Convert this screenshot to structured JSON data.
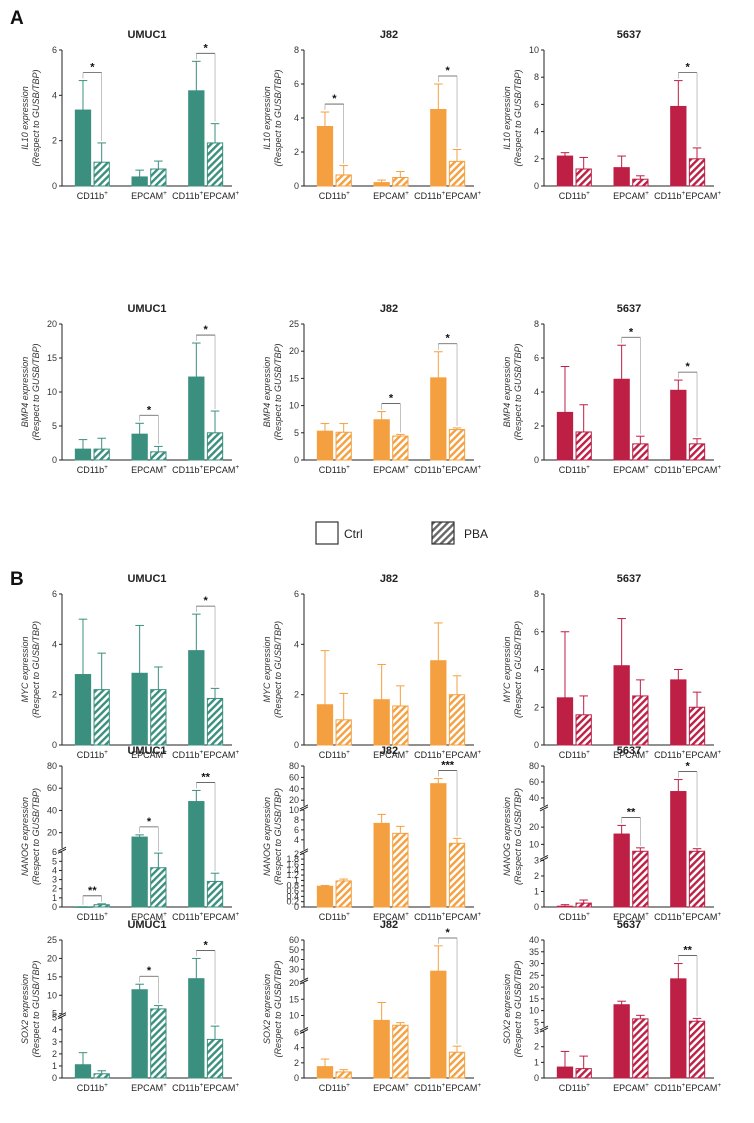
{
  "panel_labels": [
    "A",
    "B"
  ],
  "legend": {
    "items": [
      {
        "label": "Ctrl",
        "pattern": "solid"
      },
      {
        "label": "PBA",
        "pattern": "hatched"
      }
    ]
  },
  "colors": {
    "UMUC1": "#3a8f7f",
    "J82": "#f5a040",
    "5637": "#bd1f45"
  },
  "chart_data": [
    {
      "type": "bar",
      "panel": "A",
      "row": 0,
      "col": 0,
      "title": "UMUC1",
      "gene": "IL10",
      "ylabel_rest": "Respect to GUSB/TBP",
      "categories": [
        "CD11b+",
        "EPCAM+",
        "CD11b+EPCAM+"
      ],
      "ylim": [
        0,
        6
      ],
      "yticks": [
        0,
        2,
        4,
        6
      ],
      "series": [
        {
          "name": "Ctrl",
          "values": [
            3.35,
            0.4,
            4.2
          ],
          "errors": [
            1.3,
            0.3,
            1.3
          ]
        },
        {
          "name": "PBA",
          "values": [
            1.05,
            0.75,
            1.9
          ],
          "errors": [
            0.85,
            0.35,
            0.85
          ]
        }
      ],
      "annotations": [
        {
          "category": 0,
          "label": "*"
        },
        {
          "category": 2,
          "label": "*"
        }
      ]
    },
    {
      "type": "bar",
      "panel": "A",
      "row": 0,
      "col": 1,
      "title": "J82",
      "gene": "IL10",
      "ylabel_rest": "Respect to GUSB/TBP",
      "categories": [
        "CD11b+",
        "EPCAM+",
        "CD11b+EPCAM+"
      ],
      "ylim": [
        0,
        8
      ],
      "yticks": [
        0,
        2,
        4,
        6,
        8
      ],
      "series": [
        {
          "name": "Ctrl",
          "values": [
            3.5,
            0.2,
            4.5
          ],
          "errors": [
            0.85,
            0.15,
            1.5
          ]
        },
        {
          "name": "PBA",
          "values": [
            0.65,
            0.5,
            1.45
          ],
          "errors": [
            0.55,
            0.35,
            0.7
          ]
        }
      ],
      "annotations": [
        {
          "category": 0,
          "label": "*"
        },
        {
          "category": 2,
          "label": "*"
        }
      ]
    },
    {
      "type": "bar",
      "panel": "A",
      "row": 0,
      "col": 2,
      "title": "5637",
      "gene": "IL10",
      "ylabel_rest": "Respect to GUSB/TBP",
      "categories": [
        "CD11b+",
        "EPCAM+",
        "CD11b+EPCAM+"
      ],
      "ylim": [
        0,
        10
      ],
      "yticks": [
        0,
        2,
        4,
        6,
        8,
        10
      ],
      "series": [
        {
          "name": "Ctrl",
          "values": [
            2.2,
            1.35,
            5.85
          ],
          "errors": [
            0.25,
            0.85,
            1.9
          ]
        },
        {
          "name": "PBA",
          "values": [
            1.25,
            0.5,
            2.0
          ],
          "errors": [
            0.85,
            0.25,
            0.8
          ]
        }
      ],
      "annotations": [
        {
          "category": 2,
          "label": "*"
        }
      ]
    },
    {
      "type": "bar",
      "panel": "A",
      "row": 1,
      "col": 0,
      "title": "UMUC1",
      "gene": "BMP4",
      "ylabel_rest": "Respect to GUSB/TBP",
      "categories": [
        "CD11b+",
        "EPCAM+",
        "CD11b+EPCAM+"
      ],
      "ylim": [
        0,
        20
      ],
      "yticks": [
        0,
        5,
        10,
        15,
        20
      ],
      "series": [
        {
          "name": "Ctrl",
          "values": [
            1.6,
            3.8,
            12.2
          ],
          "errors": [
            1.4,
            1.6,
            5.0
          ]
        },
        {
          "name": "PBA",
          "values": [
            1.6,
            1.2,
            4.0
          ],
          "errors": [
            1.6,
            0.8,
            3.2
          ]
        }
      ],
      "annotations": [
        {
          "category": 1,
          "label": "*"
        },
        {
          "category": 2,
          "label": "*"
        }
      ]
    },
    {
      "type": "bar",
      "panel": "A",
      "row": 1,
      "col": 1,
      "title": "J82",
      "gene": "BMP4",
      "ylabel_rest": "Respect to GUSB/TBP",
      "categories": [
        "CD11b+",
        "EPCAM+",
        "CD11b+EPCAM+"
      ],
      "ylim": [
        0,
        25
      ],
      "yticks": [
        0,
        5,
        10,
        15,
        20,
        25
      ],
      "series": [
        {
          "name": "Ctrl",
          "values": [
            5.3,
            7.4,
            15.1
          ],
          "errors": [
            1.4,
            1.5,
            4.8
          ]
        },
        {
          "name": "PBA",
          "values": [
            5.1,
            4.4,
            5.6
          ],
          "errors": [
            1.6,
            0.3,
            0.3
          ]
        }
      ],
      "annotations": [
        {
          "category": 1,
          "label": "*"
        },
        {
          "category": 2,
          "label": "*"
        }
      ]
    },
    {
      "type": "bar",
      "panel": "A",
      "row": 1,
      "col": 2,
      "title": "5637",
      "gene": "BMP4",
      "ylabel_rest": "Respect to GUSB/TBP",
      "categories": [
        "CD11b+",
        "EPCAM+",
        "CD11b+EPCAM+"
      ],
      "ylim": [
        0,
        8
      ],
      "yticks": [
        0,
        2,
        4,
        6,
        8
      ],
      "series": [
        {
          "name": "Ctrl",
          "values": [
            2.8,
            4.75,
            4.1
          ],
          "errors": [
            2.7,
            2.0,
            0.6
          ]
        },
        {
          "name": "PBA",
          "values": [
            1.65,
            0.95,
            0.95
          ],
          "errors": [
            1.6,
            0.45,
            0.3
          ]
        }
      ],
      "annotations": [
        {
          "category": 1,
          "label": "*"
        },
        {
          "category": 2,
          "label": "*"
        }
      ]
    },
    {
      "type": "bar",
      "panel": "B",
      "row": 2,
      "col": 0,
      "title": "UMUC1",
      "gene": "MYC",
      "ylabel_rest": "Respect to GUSB/TBP",
      "categories": [
        "CD11b+",
        "EPCAM+",
        "CD11b+EPCAM+"
      ],
      "ylim": [
        0,
        6
      ],
      "yticks": [
        0,
        2,
        4,
        6
      ],
      "series": [
        {
          "name": "Ctrl",
          "values": [
            2.8,
            2.85,
            3.75
          ],
          "errors": [
            2.2,
            1.9,
            1.45
          ]
        },
        {
          "name": "PBA",
          "values": [
            2.2,
            2.2,
            1.85
          ],
          "errors": [
            1.45,
            0.9,
            0.4
          ]
        }
      ],
      "annotations": [
        {
          "category": 2,
          "label": "*"
        }
      ]
    },
    {
      "type": "bar",
      "panel": "B",
      "row": 2,
      "col": 1,
      "title": "J82",
      "gene": "MYC",
      "ylabel_rest": "Respect to GUSB/TBP",
      "categories": [
        "CD11b+",
        "EPCAM+",
        "CD11b+EPCAM+"
      ],
      "ylim": [
        0,
        6
      ],
      "yticks": [
        0,
        2,
        4,
        6
      ],
      "series": [
        {
          "name": "Ctrl",
          "values": [
            1.6,
            1.8,
            3.35
          ],
          "errors": [
            2.15,
            1.4,
            1.5
          ]
        },
        {
          "name": "PBA",
          "values": [
            1.0,
            1.55,
            2.0
          ],
          "errors": [
            1.05,
            0.8,
            0.75
          ]
        }
      ],
      "annotations": []
    },
    {
      "type": "bar",
      "panel": "B",
      "row": 2,
      "col": 2,
      "title": "5637",
      "gene": "MYC",
      "ylabel_rest": "Respect to GUSB/TBP",
      "categories": [
        "CD11b+",
        "EPCAM+",
        "CD11b+EPCAM+"
      ],
      "ylim": [
        0,
        8
      ],
      "yticks": [
        0,
        2,
        4,
        6,
        8
      ],
      "series": [
        {
          "name": "Ctrl",
          "values": [
            2.5,
            4.2,
            3.45
          ],
          "errors": [
            3.5,
            2.5,
            0.55
          ]
        },
        {
          "name": "PBA",
          "values": [
            1.6,
            2.6,
            2.0
          ],
          "errors": [
            1.0,
            0.85,
            0.8
          ]
        }
      ],
      "annotations": []
    },
    {
      "type": "bar",
      "panel": "B",
      "row": 3,
      "col": 0,
      "title": "UMUC1",
      "gene": "NANOG",
      "ylabel_rest": "Respect to GUSB/TBP",
      "categories": [
        "CD11b+",
        "EPCAM+",
        "CD11b+EPCAM+"
      ],
      "segments": [
        {
          "min": 0,
          "max": 6,
          "ticks": [
            0,
            1,
            2,
            3,
            4,
            5,
            6
          ],
          "weight": 0.4
        },
        {
          "min": 6,
          "max": 80,
          "ticks": [
            20,
            40,
            60,
            80
          ],
          "weight": 0.6
        }
      ],
      "series": [
        {
          "name": "Ctrl",
          "values": [
            0.02,
            16,
            48
          ],
          "errors": [
            0,
            2,
            10
          ]
        },
        {
          "name": "PBA",
          "values": [
            0.25,
            4.3,
            2.8
          ],
          "errors": [
            0.1,
            1.6,
            0.9
          ]
        }
      ],
      "annotations": [
        {
          "category": 0,
          "label": "**"
        },
        {
          "category": 1,
          "label": "*"
        },
        {
          "category": 2,
          "label": "**"
        }
      ]
    },
    {
      "type": "bar",
      "panel": "B",
      "row": 3,
      "col": 1,
      "title": "J82",
      "gene": "NANOG",
      "ylabel_rest": "Respect to GUSB/TBP",
      "categories": [
        "CD11b+",
        "EPCAM+",
        "CD11b+EPCAM+"
      ],
      "segments": [
        {
          "min": 0,
          "max": 2,
          "ticks": [
            0,
            0.2,
            0.4,
            0.6,
            0.8,
            1.0,
            1.2,
            1.4,
            1.6,
            1.8,
            2.0
          ],
          "weight": 0.4
        },
        {
          "min": 2,
          "max": 10,
          "ticks": [
            4,
            6,
            8,
            10
          ],
          "weight": 0.3
        },
        {
          "min": 10,
          "max": 80,
          "ticks": [
            20,
            40,
            60,
            80
          ],
          "weight": 0.3
        }
      ],
      "series": [
        {
          "name": "Ctrl",
          "values": [
            0.78,
            7.3,
            49
          ],
          "errors": [
            0.03,
            1.8,
            9
          ]
        },
        {
          "name": "PBA",
          "values": [
            0.98,
            5.3,
            3.3
          ],
          "errors": [
            0.07,
            1.4,
            1.0
          ]
        }
      ],
      "annotations": [
        {
          "category": 2,
          "label": "***"
        }
      ]
    },
    {
      "type": "bar",
      "panel": "B",
      "row": 3,
      "col": 2,
      "title": "5637",
      "gene": "NANOG",
      "ylabel_rest": "Respect to GUSB/TBP",
      "categories": [
        "CD11b+",
        "EPCAM+",
        "CD11b+EPCAM+"
      ],
      "segments": [
        {
          "min": 0,
          "max": 3,
          "ticks": [
            0,
            1,
            2,
            3
          ],
          "weight": 0.35
        },
        {
          "min": 3,
          "max": 30,
          "ticks": [
            10,
            20
          ],
          "weight": 0.35
        },
        {
          "min": 30,
          "max": 80,
          "ticks": [
            40,
            60,
            80
          ],
          "weight": 0.3
        }
      ],
      "series": [
        {
          "name": "Ctrl",
          "values": [
            0.05,
            16,
            48
          ],
          "errors": [
            0.1,
            5,
            15
          ]
        },
        {
          "name": "PBA",
          "values": [
            0.25,
            6,
            6
          ],
          "errors": [
            0.2,
            2,
            1.5
          ]
        }
      ],
      "annotations": [
        {
          "category": 1,
          "label": "**"
        },
        {
          "category": 2,
          "label": "*"
        }
      ]
    },
    {
      "type": "bar",
      "panel": "B",
      "row": 4,
      "col": 0,
      "title": "UMUC1",
      "gene": "SOX2",
      "ylabel_rest": "Respect to GUSB/TBP",
      "categories": [
        "CD11b+",
        "EPCAM+",
        "CD11b+EPCAM+"
      ],
      "segments": [
        {
          "min": 0,
          "max": 5,
          "ticks": [
            0,
            1,
            2,
            3,
            4,
            5
          ],
          "weight": 0.45
        },
        {
          "min": 5,
          "max": 25,
          "ticks": [
            5,
            10,
            15,
            20,
            25
          ],
          "weight": 0.55
        }
      ],
      "series": [
        {
          "name": "Ctrl",
          "values": [
            1.1,
            11.5,
            14.5
          ],
          "errors": [
            1.0,
            1.5,
            5.5
          ]
        },
        {
          "name": "PBA",
          "values": [
            0.35,
            6.3,
            3.2
          ],
          "errors": [
            0.25,
            0.9,
            1.1
          ]
        }
      ],
      "annotations": [
        {
          "category": 1,
          "label": "*"
        },
        {
          "category": 2,
          "label": "*"
        }
      ]
    },
    {
      "type": "bar",
      "panel": "B",
      "row": 4,
      "col": 1,
      "title": "J82",
      "gene": "SOX2",
      "ylabel_rest": "Respect to GUSB/TBP",
      "categories": [
        "CD11b+",
        "EPCAM+",
        "CD11b+EPCAM+"
      ],
      "segments": [
        {
          "min": 0,
          "max": 6,
          "ticks": [
            0,
            2,
            4,
            6
          ],
          "weight": 0.35
        },
        {
          "min": 6,
          "max": 20,
          "ticks": [
            10,
            15,
            20
          ],
          "weight": 0.35
        },
        {
          "min": 20,
          "max": 60,
          "ticks": [
            30,
            40,
            50,
            60
          ],
          "weight": 0.3
        }
      ],
      "series": [
        {
          "name": "Ctrl",
          "values": [
            1.5,
            8.5,
            28
          ],
          "errors": [
            1.0,
            5.5,
            26
          ]
        },
        {
          "name": "PBA",
          "values": [
            0.8,
            7.0,
            3.4
          ],
          "errors": [
            0.3,
            0.8,
            0.8
          ]
        }
      ],
      "annotations": [
        {
          "category": 2,
          "label": "*"
        }
      ]
    },
    {
      "type": "bar",
      "panel": "B",
      "row": 4,
      "col": 2,
      "title": "5637",
      "gene": "SOX2",
      "ylabel_rest": "Respect to GUSB/TBP",
      "categories": [
        "CD11b+",
        "EPCAM+",
        "CD11b+EPCAM+"
      ],
      "segments": [
        {
          "min": 0,
          "max": 3,
          "ticks": [
            0,
            1,
            2,
            3
          ],
          "weight": 0.35
        },
        {
          "min": 3,
          "max": 40,
          "ticks": [
            5,
            10,
            15,
            20,
            25,
            30,
            35,
            40
          ],
          "weight": 0.65
        }
      ],
      "series": [
        {
          "name": "Ctrl",
          "values": [
            0.7,
            12.5,
            23.5
          ],
          "errors": [
            1.0,
            1.5,
            6.5
          ]
        },
        {
          "name": "PBA",
          "values": [
            0.6,
            6.5,
            5.5
          ],
          "errors": [
            0.8,
            1.5,
            1.2
          ]
        }
      ],
      "annotations": [
        {
          "category": 2,
          "label": "**"
        }
      ]
    }
  ]
}
